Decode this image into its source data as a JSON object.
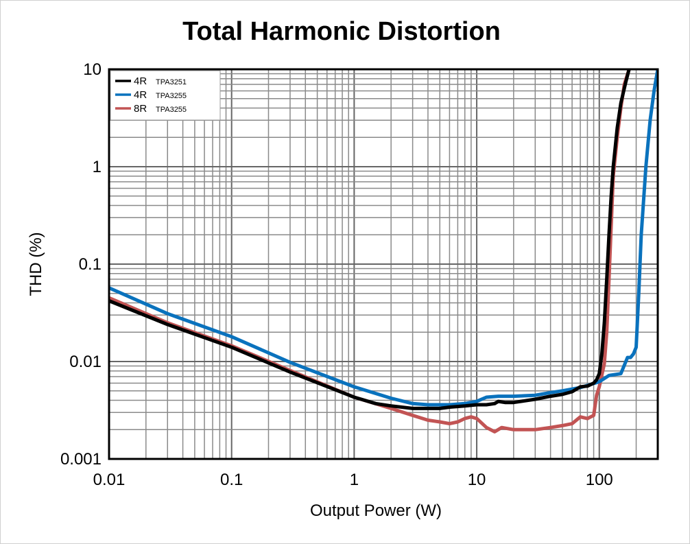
{
  "chart_data": {
    "type": "line",
    "title": "Total Harmonic Distortion",
    "xlabel": "Output Power (W)",
    "ylabel": "THD (%)",
    "x_scale": "log",
    "y_scale": "log",
    "xlim": [
      0.01,
      300
    ],
    "ylim": [
      0.001,
      10
    ],
    "grid": true,
    "legend_position": "top-left",
    "x_ticks": [
      {
        "value": 0.01,
        "label": "0.01"
      },
      {
        "value": 0.1,
        "label": "0.1"
      },
      {
        "value": 1,
        "label": "1"
      },
      {
        "value": 10,
        "label": "10"
      },
      {
        "value": 100,
        "label": "100"
      }
    ],
    "y_ticks": [
      {
        "value": 0.001,
        "label": "0.001"
      },
      {
        "value": 0.01,
        "label": "0.01"
      },
      {
        "value": 0.1,
        "label": "0.1"
      },
      {
        "value": 1,
        "label": "1"
      },
      {
        "value": 10,
        "label": "10"
      }
    ],
    "series": [
      {
        "name": "4R",
        "sub": "TPA3251",
        "color": "#000000",
        "x": [
          0.01,
          0.03,
          0.1,
          0.3,
          1,
          1.5,
          2,
          3,
          4,
          5,
          6,
          8,
          10,
          12,
          14,
          15,
          17,
          20,
          30,
          40,
          50,
          60,
          70,
          80,
          90,
          95,
          100,
          105,
          110,
          115,
          120,
          125,
          130,
          140,
          150,
          165,
          175
        ],
        "y": [
          0.042,
          0.024,
          0.014,
          0.0078,
          0.0043,
          0.0037,
          0.0035,
          0.0033,
          0.0033,
          0.0033,
          0.0034,
          0.0035,
          0.0036,
          0.0036,
          0.0037,
          0.0039,
          0.0038,
          0.0038,
          0.0041,
          0.0044,
          0.0046,
          0.0049,
          0.0055,
          0.0056,
          0.006,
          0.0065,
          0.0075,
          0.012,
          0.025,
          0.07,
          0.2,
          0.5,
          1.0,
          2.5,
          4.5,
          7.5,
          10
        ]
      },
      {
        "name": "4R",
        "sub": "TPA3255",
        "color": "#0a72bd",
        "x": [
          0.01,
          0.03,
          0.1,
          0.3,
          1,
          2,
          3,
          4,
          6,
          8,
          10,
          12,
          15,
          20,
          30,
          40,
          50,
          70,
          100,
          120,
          150,
          170,
          180,
          190,
          200,
          210,
          220,
          240,
          260,
          280,
          300
        ],
        "y": [
          0.057,
          0.031,
          0.018,
          0.0098,
          0.0055,
          0.0042,
          0.0037,
          0.0036,
          0.0036,
          0.0037,
          0.0039,
          0.0043,
          0.0044,
          0.0044,
          0.0045,
          0.0048,
          0.005,
          0.0054,
          0.0062,
          0.0072,
          0.0075,
          0.011,
          0.011,
          0.012,
          0.014,
          0.05,
          0.2,
          1.0,
          3.0,
          6.0,
          10
        ]
      },
      {
        "name": "8R",
        "sub": "TPA3255",
        "color": "#c25454",
        "x": [
          0.01,
          0.03,
          0.1,
          0.3,
          1,
          2,
          3,
          4,
          5,
          6,
          7,
          8,
          9,
          10,
          12,
          14,
          16,
          20,
          30,
          40,
          50,
          60,
          70,
          80,
          90,
          95,
          100,
          110,
          115,
          120,
          125,
          130,
          140,
          150,
          160,
          175
        ],
        "y": [
          0.045,
          0.025,
          0.0145,
          0.0081,
          0.0043,
          0.0033,
          0.0028,
          0.0025,
          0.0024,
          0.0023,
          0.0024,
          0.0026,
          0.0027,
          0.0026,
          0.0021,
          0.0019,
          0.0021,
          0.002,
          0.002,
          0.0021,
          0.0022,
          0.0023,
          0.0027,
          0.0026,
          0.0028,
          0.0045,
          0.0055,
          0.0095,
          0.02,
          0.07,
          0.25,
          0.8,
          2.0,
          4.0,
          7.0,
          10
        ]
      }
    ]
  }
}
